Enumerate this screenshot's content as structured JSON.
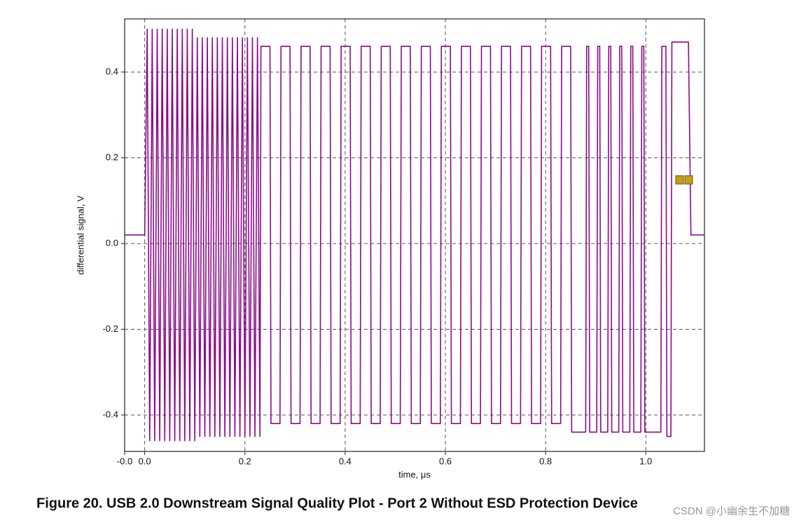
{
  "chart_data": {
    "type": "line",
    "x_label": "time, μs",
    "y_label": "differential signal, V",
    "caption": "Figure 20. USB 2.0 Downstream Signal Quality Plot - Port 2 Without ESD Protection Device",
    "watermark": "CSDN @小幽余生不加糖",
    "xlim": [
      -0.04,
      1.117
    ],
    "ylim": [
      -0.485,
      0.524
    ],
    "xticks": [
      {
        "value": -0.04,
        "label": "-0.0"
      },
      {
        "value": 0,
        "label": "0.0"
      },
      0.2,
      0.4,
      0.6,
      0.8,
      {
        "value": 1,
        "label": "1.0"
      }
    ],
    "yticks": [
      -0.4,
      -0.2,
      {
        "value": 0,
        "label": "0.0"
      },
      0.2,
      0.4
    ],
    "grid": true,
    "series": [
      {
        "color": "#8b0a8b",
        "x": [
          -0.04,
          0.0,
          0.005,
          0.01,
          0.015,
          0.02,
          0.025,
          0.03,
          0.035,
          0.04,
          0.045,
          0.05,
          0.055,
          0.06,
          0.065,
          0.07,
          0.075,
          0.08,
          0.085,
          0.09,
          0.095,
          0.1,
          0.105,
          0.11,
          0.115,
          0.12,
          0.125,
          0.13,
          0.135,
          0.14,
          0.145,
          0.15,
          0.155,
          0.16,
          0.165,
          0.17,
          0.175,
          0.18,
          0.185,
          0.19,
          0.195,
          0.2,
          0.205,
          0.21,
          0.215,
          0.22,
          0.225,
          0.23,
          0.232,
          0.25,
          0.252,
          0.27,
          0.272,
          0.29,
          0.292,
          0.31,
          0.312,
          0.33,
          0.332,
          0.35,
          0.352,
          0.37,
          0.372,
          0.39,
          0.392,
          0.41,
          0.412,
          0.43,
          0.432,
          0.45,
          0.452,
          0.47,
          0.472,
          0.49,
          0.492,
          0.51,
          0.512,
          0.53,
          0.532,
          0.55,
          0.552,
          0.57,
          0.572,
          0.59,
          0.592,
          0.61,
          0.612,
          0.63,
          0.632,
          0.65,
          0.652,
          0.67,
          0.672,
          0.69,
          0.692,
          0.71,
          0.712,
          0.73,
          0.732,
          0.75,
          0.752,
          0.77,
          0.772,
          0.79,
          0.792,
          0.81,
          0.812,
          0.83,
          0.832,
          0.85,
          0.852,
          0.88,
          0.882,
          0.886,
          0.888,
          0.902,
          0.904,
          0.908,
          0.91,
          0.924,
          0.926,
          0.93,
          0.932,
          0.946,
          0.948,
          0.952,
          0.954,
          0.968,
          0.97,
          0.974,
          0.976,
          0.99,
          0.992,
          0.996,
          0.998,
          1.03,
          1.032,
          1.04,
          1.042,
          1.05,
          1.052,
          1.085,
          1.09,
          1.117
        ],
        "values": [
          0.02,
          0.02,
          0.5,
          -0.46,
          0.5,
          -0.46,
          0.5,
          -0.46,
          0.5,
          -0.46,
          0.5,
          -0.46,
          0.5,
          -0.46,
          0.5,
          -0.46,
          0.5,
          -0.46,
          0.5,
          -0.46,
          0.5,
          -0.46,
          0.48,
          -0.45,
          0.48,
          -0.45,
          0.48,
          -0.45,
          0.48,
          -0.45,
          0.48,
          -0.45,
          0.48,
          -0.45,
          0.48,
          -0.45,
          0.48,
          -0.45,
          0.48,
          -0.45,
          0.48,
          -0.45,
          0.48,
          -0.45,
          0.48,
          -0.45,
          0.48,
          -0.45,
          0.46,
          0.46,
          -0.42,
          -0.42,
          0.46,
          0.46,
          -0.42,
          -0.42,
          0.46,
          0.46,
          -0.42,
          -0.42,
          0.46,
          0.46,
          -0.42,
          -0.42,
          0.46,
          0.46,
          -0.42,
          -0.42,
          0.46,
          0.46,
          -0.42,
          -0.42,
          0.46,
          0.46,
          -0.42,
          -0.42,
          0.46,
          0.46,
          -0.42,
          -0.42,
          0.46,
          0.46,
          -0.42,
          -0.42,
          0.46,
          0.46,
          -0.42,
          -0.42,
          0.46,
          0.46,
          -0.42,
          -0.42,
          0.46,
          0.46,
          -0.42,
          -0.42,
          0.46,
          0.46,
          -0.42,
          -0.42,
          0.46,
          0.46,
          -0.42,
          -0.42,
          0.46,
          0.46,
          -0.42,
          -0.42,
          0.46,
          0.46,
          -0.44,
          -0.44,
          0.46,
          0.46,
          -0.44,
          -0.44,
          0.46,
          0.46,
          -0.44,
          -0.44,
          0.46,
          0.46,
          -0.44,
          -0.44,
          0.46,
          0.46,
          -0.44,
          -0.44,
          0.46,
          0.46,
          -0.44,
          -0.44,
          0.46,
          0.46,
          -0.44,
          -0.44,
          0.46,
          0.46,
          -0.45,
          -0.45,
          0.47,
          0.47,
          0.02,
          0.02
        ]
      }
    ]
  }
}
